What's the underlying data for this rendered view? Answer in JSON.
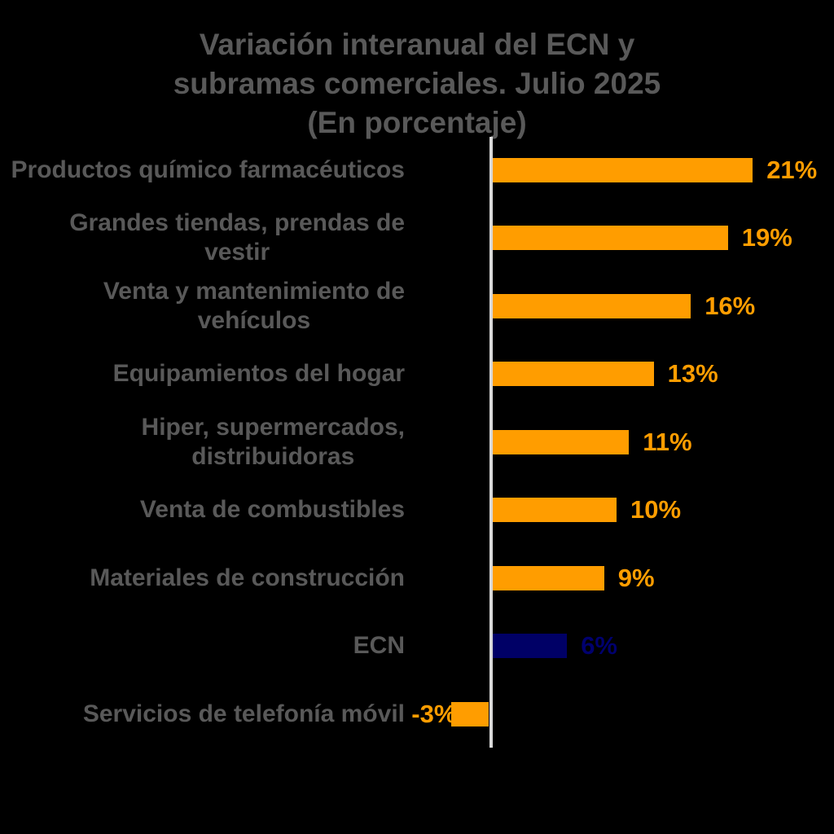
{
  "title": "Variación interanual del ECN y\nsubramas comerciales. Julio 2025\n(En porcentaje)",
  "chart_data": {
    "type": "bar",
    "orientation": "horizontal",
    "unit": "percent",
    "title": "Variación interanual del ECN y subramas comerciales. Julio 2025 (En porcentaje)",
    "categories": [
      "Productos químico farmacéuticos",
      "Grandes tiendas, prendas de\nvestir",
      "Venta y mantenimiento de\nvehículos",
      "Equipamientos del hogar",
      "Hiper, supermercados,\ndistribuidoras",
      "Venta de combustibles",
      "Materiales de construcción",
      "ECN",
      "Servicios de telefonía móvil"
    ],
    "values": [
      21,
      19,
      16,
      13,
      11,
      10,
      9,
      6,
      -3
    ],
    "value_labels": [
      "21%",
      "19%",
      "16%",
      "13%",
      "11%",
      "10%",
      "9%",
      "6%",
      "-3%"
    ],
    "bar_colors": [
      "#FF9D00",
      "#FF9D00",
      "#FF9D00",
      "#FF9D00",
      "#FF9D00",
      "#FF9D00",
      "#FF9D00",
      "#000066",
      "#FF9D00"
    ],
    "value_label_colors": [
      "#FF9D00",
      "#FF9D00",
      "#FF9D00",
      "#FF9D00",
      "#FF9D00",
      "#FF9D00",
      "#FF9D00",
      "#00006E",
      "#FF9D00"
    ],
    "highlight_category": "ECN",
    "axis": {
      "baseline_value": 0,
      "gridlines": false,
      "legend": "none"
    },
    "xlim": [
      -3,
      27
    ]
  },
  "colors": {
    "background": "#000000",
    "text": "#595959",
    "bar_orange": "#FF9D00",
    "bar_navy": "#000066",
    "axis_line": "#D9D9D9"
  }
}
